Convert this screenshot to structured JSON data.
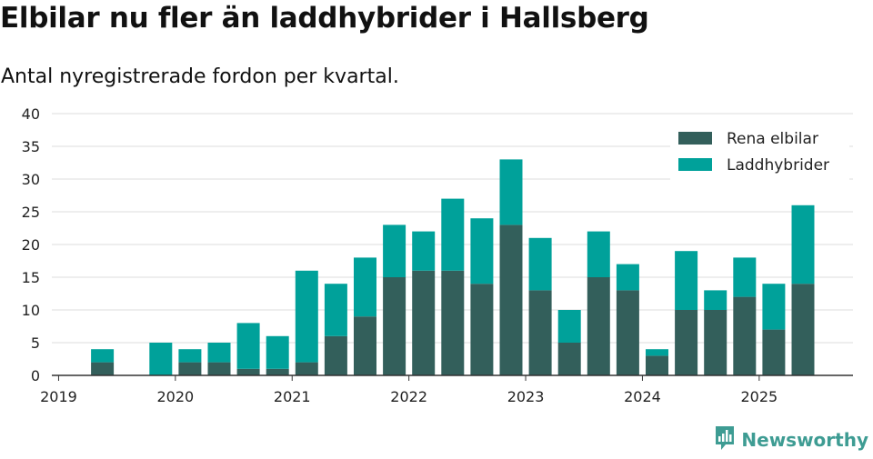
{
  "header": {
    "title": "Elbilar nu fler än laddhybrider i Hallsberg",
    "subtitle": "Antal nyregistrerade fordon per kvartal."
  },
  "brand": {
    "name": "Newsworthy",
    "icon": "newsworthy-logo-icon",
    "color": "#3e9c93"
  },
  "chart_data": {
    "type": "bar",
    "stacked": true,
    "categories": [
      "2019 Q1",
      "2019 Q2",
      "2019 Q3",
      "2019 Q4",
      "2020 Q1",
      "2020 Q2",
      "2020 Q3",
      "2020 Q4",
      "2021 Q1",
      "2021 Q2",
      "2021 Q3",
      "2021 Q4",
      "2022 Q1",
      "2022 Q2",
      "2022 Q3",
      "2022 Q4",
      "2023 Q1",
      "2023 Q2",
      "2023 Q3",
      "2023 Q4",
      "2024 Q1",
      "2024 Q2",
      "2024 Q3",
      "2024 Q4",
      "2025 Q1",
      "2025 Q2"
    ],
    "x_tick_labels": [
      "2019",
      "2020",
      "2021",
      "2022",
      "2023",
      "2024",
      "2025"
    ],
    "series": [
      {
        "name": "Rena elbilar",
        "color": "#335f5b",
        "values": [
          0,
          2,
          0,
          0,
          2,
          2,
          1,
          1,
          2,
          6,
          9,
          15,
          16,
          16,
          14,
          23,
          13,
          5,
          15,
          13,
          3,
          10,
          10,
          12,
          7,
          14
        ]
      },
      {
        "name": "Laddhybrider",
        "color": "#00a19a",
        "values": [
          0,
          2,
          0,
          5,
          2,
          3,
          7,
          5,
          14,
          8,
          9,
          8,
          6,
          11,
          10,
          10,
          8,
          5,
          7,
          4,
          1,
          9,
          3,
          6,
          7,
          12
        ]
      }
    ],
    "ylim": [
      0,
      40
    ],
    "y_ticks": [
      0,
      5,
      10,
      15,
      20,
      25,
      30,
      35,
      40
    ],
    "grid": true,
    "legend_position": "top-right",
    "title": "Elbilar nu fler än laddhybrider i Hallsberg",
    "subtitle": "Antal nyregistrerade fordon per kvartal.",
    "xlabel": "",
    "ylabel": ""
  }
}
